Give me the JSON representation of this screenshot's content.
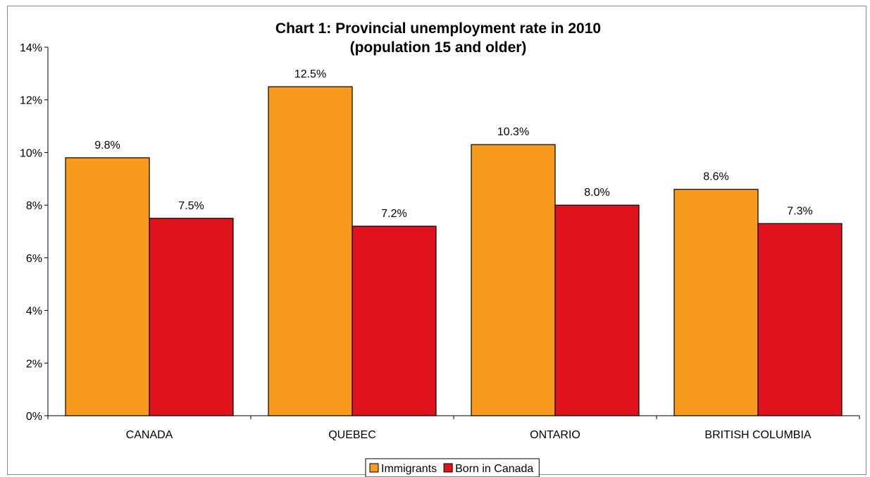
{
  "chart_data": {
    "type": "bar",
    "title": "Chart 1: Provincial unemployment rate in 2010",
    "subtitle": "(population 15 and older)",
    "xlabel": "",
    "ylabel": "",
    "ylim": [
      0,
      14
    ],
    "y_tick_labels": [
      "0%",
      "2%",
      "4%",
      "6%",
      "8%",
      "10%",
      "12%",
      "14%"
    ],
    "y_tick_values": [
      0,
      2,
      4,
      6,
      8,
      10,
      12,
      14
    ],
    "categories": [
      "CANADA",
      "QUEBEC",
      "ONTARIO",
      "BRITISH COLUMBIA"
    ],
    "series": [
      {
        "name": "Immigrants",
        "color": "#F79A1E",
        "values": [
          9.8,
          12.5,
          10.3,
          8.6
        ],
        "labels": [
          "9.8%",
          "12.5%",
          "10.3%",
          "8.6%"
        ]
      },
      {
        "name": "Born in Canada",
        "color": "#E0121E",
        "values": [
          7.5,
          7.2,
          8.0,
          7.3
        ],
        "labels": [
          "7.5%",
          "7.2%",
          "8.0%",
          "7.3%"
        ]
      }
    ],
    "grid": false,
    "legend_position": "bottom"
  }
}
